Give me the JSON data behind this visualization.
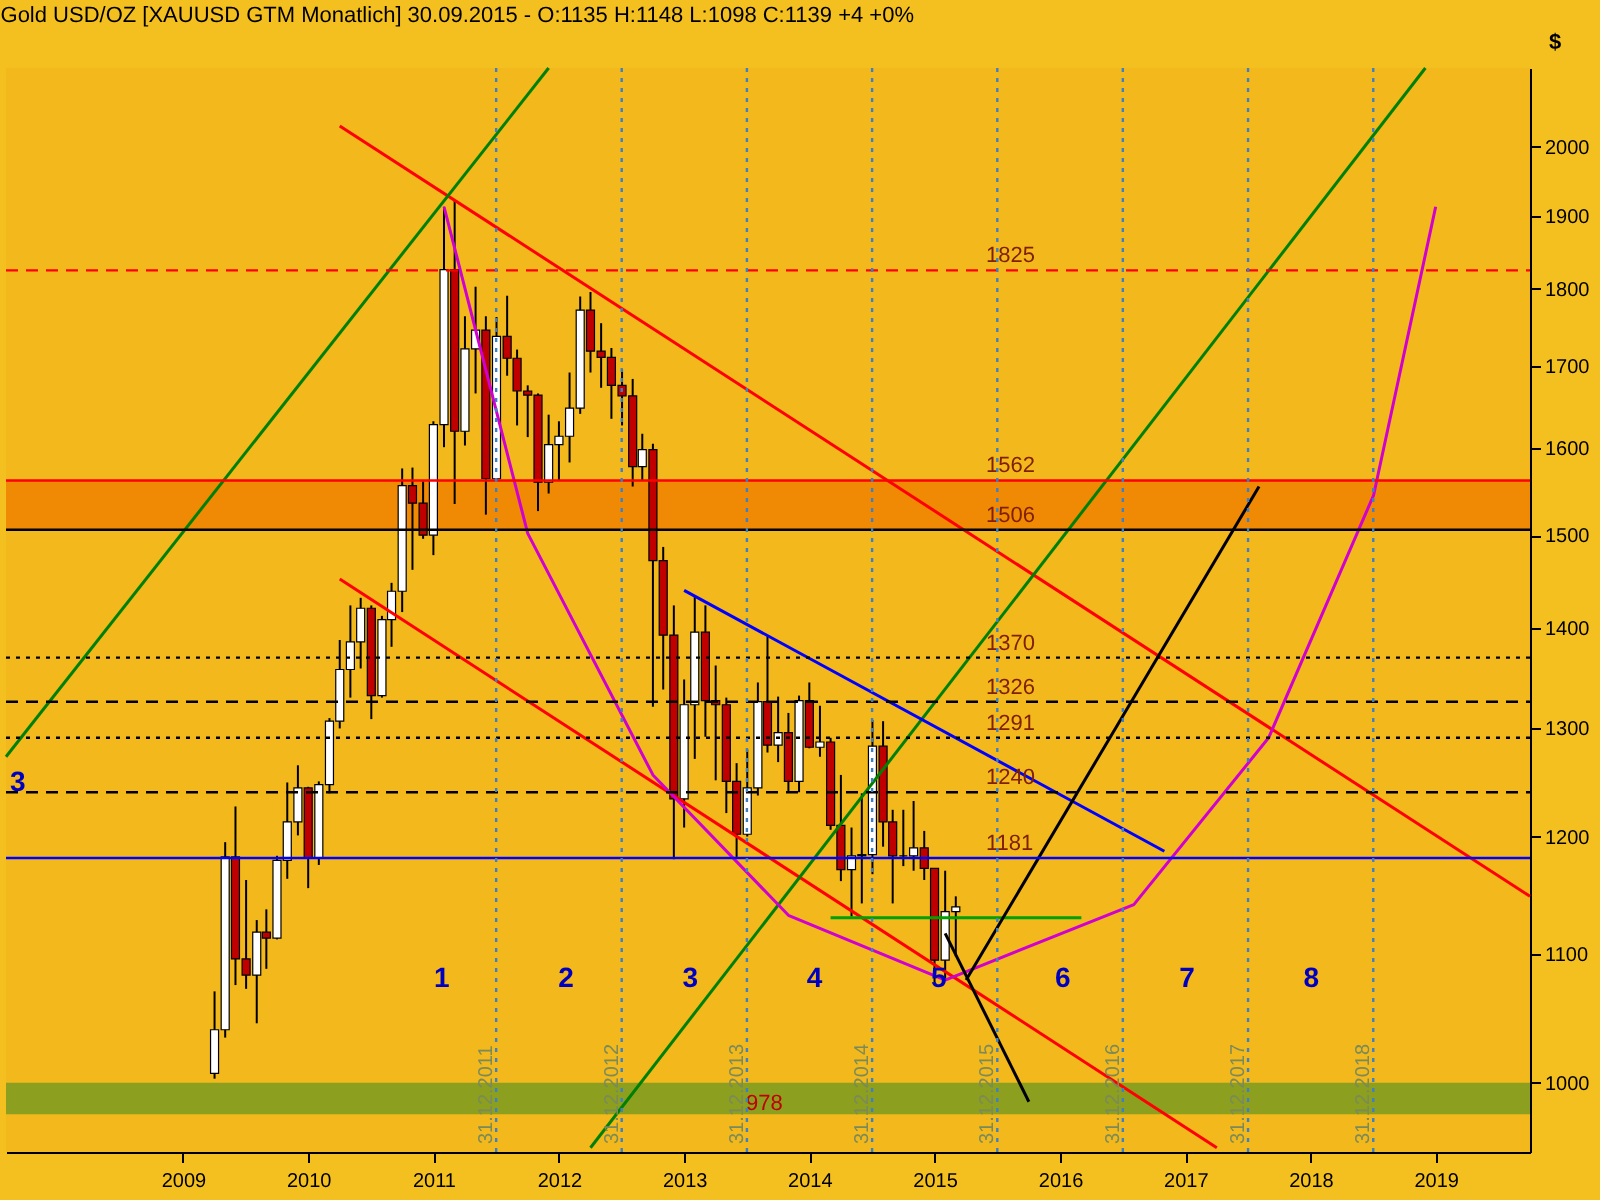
{
  "chart_data": {
    "type": "candlestick",
    "title": "Gold USD/OZ [XAUUSD GTM  Monatlich] 30.09.2015 - O:1135 H:1148 L:1098 C:1139 +4 +0%",
    "ylabel": "$",
    "log": "y",
    "grid": false,
    "xlim": [
      "2008-02-01",
      "2020-04-01"
    ],
    "xticks": [
      {
        "value": "2009-07-01",
        "label": "2009"
      },
      {
        "value": "2010-07-01",
        "label": "2010"
      },
      {
        "value": "2011-07-01",
        "label": "2011"
      },
      {
        "value": "2012-07-01",
        "label": "2012"
      },
      {
        "value": "2013-07-01",
        "label": "2013"
      },
      {
        "value": "2014-07-01",
        "label": "2014"
      },
      {
        "value": "2015-07-01",
        "label": "2015"
      },
      {
        "value": "2016-07-01",
        "label": "2016"
      },
      {
        "value": "2017-07-01",
        "label": "2017"
      },
      {
        "value": "2018-07-01",
        "label": "2018"
      },
      {
        "value": "2019-07-01",
        "label": "2019"
      }
    ],
    "ylim": [
      950,
      2120
    ],
    "yticks": [
      1000,
      1100,
      1200,
      1300,
      1400,
      1500,
      1600,
      1700,
      1800,
      1900,
      2000
    ],
    "x": [
      "2009-10",
      "2009-11",
      "2009-12",
      "2010-01",
      "2010-02",
      "2010-03",
      "2010-04",
      "2010-05",
      "2010-06",
      "2010-07",
      "2010-08",
      "2010-09",
      "2010-10",
      "2010-11",
      "2010-12",
      "2011-01",
      "2011-02",
      "2011-03",
      "2011-04",
      "2011-05",
      "2011-06",
      "2011-07",
      "2011-08",
      "2011-09",
      "2011-10",
      "2011-11",
      "2011-12",
      "2012-01",
      "2012-02",
      "2012-03",
      "2012-04",
      "2012-05",
      "2012-06",
      "2012-07",
      "2012-08",
      "2012-09",
      "2012-10",
      "2012-11",
      "2012-12",
      "2013-01",
      "2013-02",
      "2013-03",
      "2013-04",
      "2013-05",
      "2013-06",
      "2013-07",
      "2013-08",
      "2013-09",
      "2013-10",
      "2013-11",
      "2013-12",
      "2014-01",
      "2014-02",
      "2014-03",
      "2014-04",
      "2014-05",
      "2014-06",
      "2014-07",
      "2014-08",
      "2014-09",
      "2014-10",
      "2014-11",
      "2014-12",
      "2015-01",
      "2015-02",
      "2015-03",
      "2015-04",
      "2015-05",
      "2015-06",
      "2015-07",
      "2015-08",
      "2015-09"
    ],
    "ohlc": [
      [
        1007,
        1070,
        1003,
        1040
      ],
      [
        1040,
        1195,
        1034,
        1182
      ],
      [
        1182,
        1227,
        1075,
        1096
      ],
      [
        1096,
        1162,
        1072,
        1083
      ],
      [
        1083,
        1128,
        1045,
        1118
      ],
      [
        1118,
        1137,
        1088,
        1113
      ],
      [
        1113,
        1183,
        1112,
        1179
      ],
      [
        1179,
        1249,
        1163,
        1213
      ],
      [
        1213,
        1265,
        1201,
        1244
      ],
      [
        1244,
        1245,
        1155,
        1181
      ],
      [
        1181,
        1250,
        1175,
        1247
      ],
      [
        1247,
        1310,
        1239,
        1307
      ],
      [
        1307,
        1388,
        1300,
        1358
      ],
      [
        1358,
        1424,
        1330,
        1386
      ],
      [
        1386,
        1432,
        1359,
        1421
      ],
      [
        1421,
        1424,
        1309,
        1332
      ],
      [
        1332,
        1413,
        1330,
        1409
      ],
      [
        1409,
        1448,
        1381,
        1439
      ],
      [
        1439,
        1576,
        1417,
        1556
      ],
      [
        1556,
        1577,
        1462,
        1536
      ],
      [
        1536,
        1561,
        1496,
        1500
      ],
      [
        1500,
        1632,
        1478,
        1628
      ],
      [
        1628,
        1913,
        1601,
        1826
      ],
      [
        1826,
        1921,
        1535,
        1620
      ],
      [
        1620,
        1764,
        1603,
        1722
      ],
      [
        1722,
        1803,
        1666,
        1746
      ],
      [
        1746,
        1764,
        1523,
        1564
      ],
      [
        1564,
        1763,
        1563,
        1738
      ],
      [
        1738,
        1791,
        1688,
        1710
      ],
      [
        1710,
        1721,
        1627,
        1669
      ],
      [
        1669,
        1676,
        1613,
        1664
      ],
      [
        1664,
        1666,
        1527,
        1560
      ],
      [
        1560,
        1640,
        1547,
        1604
      ],
      [
        1604,
        1632,
        1562,
        1614
      ],
      [
        1614,
        1692,
        1583,
        1648
      ],
      [
        1648,
        1790,
        1641,
        1772
      ],
      [
        1772,
        1796,
        1692,
        1719
      ],
      [
        1719,
        1755,
        1673,
        1711
      ],
      [
        1711,
        1723,
        1635,
        1676
      ],
      [
        1676,
        1696,
        1627,
        1663
      ],
      [
        1663,
        1684,
        1555,
        1578
      ],
      [
        1578,
        1617,
        1562,
        1598
      ],
      [
        1598,
        1605,
        1321,
        1472
      ],
      [
        1472,
        1487,
        1338,
        1393
      ],
      [
        1393,
        1424,
        1180,
        1234
      ],
      [
        1234,
        1348,
        1208,
        1323
      ],
      [
        1323,
        1434,
        1271,
        1396
      ],
      [
        1396,
        1424,
        1292,
        1327
      ],
      [
        1327,
        1362,
        1251,
        1323
      ],
      [
        1323,
        1330,
        1221,
        1250
      ],
      [
        1250,
        1267,
        1182,
        1202
      ],
      [
        1202,
        1280,
        1200,
        1244
      ],
      [
        1244,
        1345,
        1237,
        1326
      ],
      [
        1326,
        1392,
        1277,
        1284
      ],
      [
        1284,
        1331,
        1268,
        1296
      ],
      [
        1296,
        1315,
        1240,
        1250
      ],
      [
        1250,
        1332,
        1240,
        1327
      ],
      [
        1327,
        1345,
        1281,
        1282
      ],
      [
        1282,
        1322,
        1273,
        1287
      ],
      [
        1287,
        1291,
        1206,
        1210
      ],
      [
        1210,
        1256,
        1161,
        1171
      ],
      [
        1171,
        1208,
        1131,
        1183
      ],
      [
        1183,
        1239,
        1142,
        1184
      ],
      [
        1184,
        1308,
        1167,
        1283
      ],
      [
        1283,
        1307,
        1191,
        1213
      ],
      [
        1213,
        1224,
        1142,
        1183
      ],
      [
        1183,
        1224,
        1174,
        1183
      ],
      [
        1183,
        1232,
        1170,
        1190
      ],
      [
        1190,
        1205,
        1162,
        1172
      ],
      [
        1172,
        1172,
        1077,
        1095
      ],
      [
        1095,
        1170,
        1080,
        1135
      ],
      [
        1135,
        1148,
        1098,
        1139
      ]
    ],
    "series": [
      {
        "type": "line",
        "color": "#ff0000",
        "x": [
          "2010-10",
          "2020-04"
        ],
        "values": [
          2031,
          1148
        ]
      },
      {
        "type": "line",
        "color": "#ff0000",
        "x": [
          "2010-10",
          "2017-10"
        ],
        "values": [
          1452,
          953
        ]
      },
      {
        "type": "line",
        "color": "#008000",
        "x": [
          "2008-02",
          "2012-06"
        ],
        "values": [
          1273,
          2120
        ]
      },
      {
        "type": "line",
        "color": "#008000",
        "x": [
          "2012-10",
          "2019-06"
        ],
        "values": [
          953,
          2120
        ]
      },
      {
        "type": "line",
        "color": "#0000ff",
        "x": [
          "2013-07",
          "2017-05"
        ],
        "values": [
          1440,
          1187
        ]
      },
      {
        "type": "line",
        "color": "#00a000",
        "x": [
          "2014-09",
          "2016-09"
        ],
        "values": [
          1130,
          1130
        ]
      },
      {
        "type": "line",
        "color": "#d000d0",
        "x": [
          "2011-08",
          "2012-04",
          "2013-04",
          "2014-05",
          "2015-08",
          "2017-02",
          "2018-03",
          "2019-01",
          "2019-07"
        ],
        "values": [
          1913,
          1502,
          1256,
          1132,
          1079,
          1141,
          1291,
          1545,
          1913
        ]
      },
      {
        "type": "line",
        "color": "#000000",
        "x": [
          "2015-10",
          "2018-02"
        ],
        "values": [
          1079,
          1555
        ]
      },
      {
        "type": "line",
        "color": "#000000",
        "x": [
          "2015-08",
          "2016-04"
        ],
        "values": [
          1117,
          986
        ]
      }
    ],
    "ref_lines": [
      {
        "axis": "y",
        "value": 1825,
        "label": "1825",
        "color": "#ff0000",
        "line_style": "dashed"
      },
      {
        "axis": "y",
        "value": 1562,
        "label": "1562",
        "color": "#ff0000"
      },
      {
        "axis": "y",
        "value": 1506,
        "label": "1506",
        "color": "#000000"
      },
      {
        "axis": "y",
        "value": 1370,
        "label": "1370",
        "color": "#000000",
        "line_style": "dotted"
      },
      {
        "axis": "y",
        "value": 1326,
        "label": "1326",
        "color": "#000000",
        "line_style": "dashed"
      },
      {
        "axis": "y",
        "value": 1291,
        "label": "1291",
        "color": "#000000",
        "line_style": "dotted"
      },
      {
        "axis": "y",
        "value": 1240,
        "label": "1240",
        "color": "#000000",
        "line_style": "dashed"
      },
      {
        "axis": "y",
        "value": 1181,
        "label": "1181",
        "color": "#0000ff"
      },
      {
        "axis": "x",
        "value": "2011-12-31",
        "label": "31.12.2011",
        "color": "#4080c0",
        "line_style": "dotted"
      },
      {
        "axis": "x",
        "value": "2012-12-31",
        "label": "31.12.2012",
        "color": "#4080c0",
        "line_style": "dotted"
      },
      {
        "axis": "x",
        "value": "2013-12-31",
        "label": "31.12.2013",
        "color": "#4080c0",
        "line_style": "dotted"
      },
      {
        "axis": "x",
        "value": "2014-12-31",
        "label": "31.12.2014",
        "color": "#4080c0",
        "line_style": "dotted"
      },
      {
        "axis": "x",
        "value": "2015-12-31",
        "label": "31.12.2015",
        "color": "#4080c0",
        "line_style": "dotted"
      },
      {
        "axis": "x",
        "value": "2016-12-31",
        "label": "31.12.2016",
        "color": "#4080c0",
        "line_style": "dotted"
      },
      {
        "axis": "x",
        "value": "2017-12-31",
        "label": "31.12.2017",
        "color": "#4080c0",
        "line_style": "dotted"
      },
      {
        "axis": "x",
        "value": "2018-12-31",
        "label": "31.12.2018",
        "color": "#4080c0",
        "line_style": "dotted"
      }
    ],
    "bands": [
      {
        "axis": "y",
        "from": 1506,
        "to": 1562,
        "color": "#f08000"
      },
      {
        "axis": "y",
        "from": 977,
        "to": 1000,
        "label": "978",
        "color": "#7a9a20"
      }
    ],
    "annotations": [
      "1",
      "2",
      "3",
      "4",
      "5",
      "6",
      "7",
      "8",
      "3"
    ]
  }
}
